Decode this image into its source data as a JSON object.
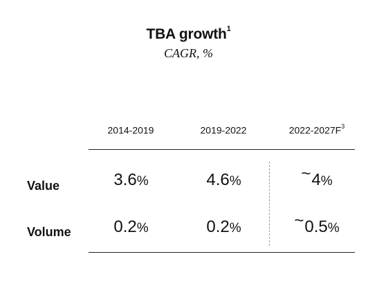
{
  "chart_data": {
    "type": "table",
    "title": "TBA growth",
    "title_footnote": "1",
    "subtitle": "CAGR, %",
    "columns": [
      {
        "label": "2014-2019",
        "footnote": ""
      },
      {
        "label": "2019-2022",
        "footnote": ""
      },
      {
        "label": "2022-2027F",
        "footnote": "3"
      }
    ],
    "rows": [
      {
        "label": "Value",
        "cells": [
          {
            "prefix": "",
            "value": "3.6",
            "unit": "%"
          },
          {
            "prefix": "",
            "value": "4.6",
            "unit": "%"
          },
          {
            "prefix": "~",
            "value": "4",
            "unit": "%"
          }
        ]
      },
      {
        "label": "Volume",
        "cells": [
          {
            "prefix": "",
            "value": "0.2",
            "unit": "%"
          },
          {
            "prefix": "",
            "value": "0.2",
            "unit": "%"
          },
          {
            "prefix": "~",
            "value": "0.5",
            "unit": "%"
          }
        ]
      }
    ]
  }
}
